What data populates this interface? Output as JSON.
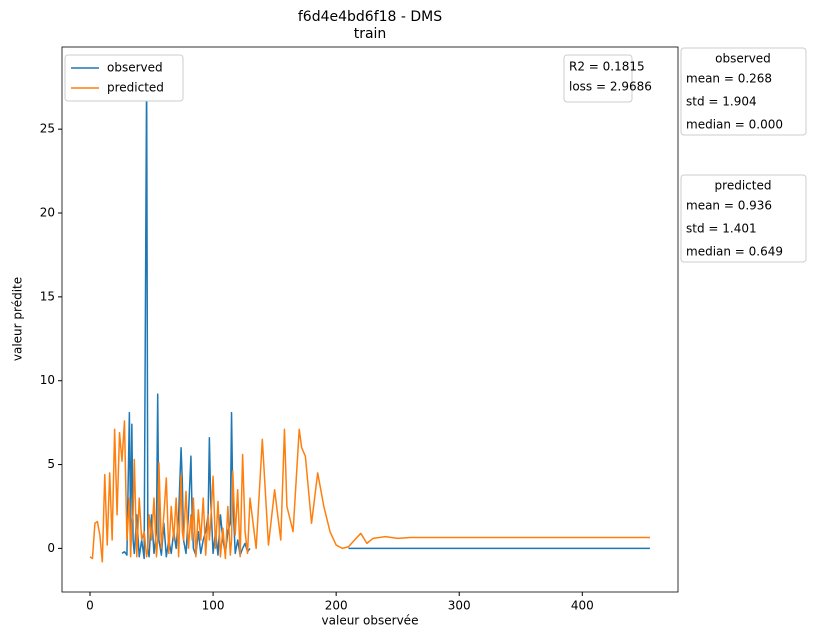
{
  "chart_data": {
    "type": "line",
    "title": "f6d4e4bd6f18 - DMS",
    "subtitle": "train",
    "xlabel": "valeur observée",
    "ylabel": "valeur prédite",
    "xlim": [
      -22.75,
      477.75
    ],
    "xticks": [
      0,
      100,
      200,
      300,
      400
    ],
    "ylim": [
      -2.6,
      29.9
    ],
    "yticks": [
      0,
      5,
      10,
      15,
      20,
      25
    ],
    "legend": "upper left",
    "x": [
      0,
      2,
      4,
      6,
      8,
      10,
      12,
      14,
      16,
      18,
      20,
      22,
      24,
      26,
      28,
      30,
      32,
      33,
      34,
      35,
      36,
      38,
      40,
      42,
      44,
      46,
      47,
      48,
      50,
      52,
      54,
      55,
      56,
      58,
      60,
      62,
      64,
      66,
      68,
      70,
      72,
      74,
      75,
      76,
      78,
      80,
      82,
      83,
      84,
      86,
      88,
      90,
      92,
      94,
      96,
      97,
      98,
      100,
      102,
      104,
      106,
      108,
      110,
      112,
      114,
      115,
      116,
      118,
      120,
      122,
      124,
      126,
      128,
      130,
      135,
      140,
      145,
      150,
      155,
      158,
      160,
      165,
      170,
      172,
      175,
      180,
      185,
      190,
      195,
      200,
      205,
      210,
      215,
      220,
      225,
      230,
      240,
      250,
      260,
      280,
      300,
      350,
      400,
      455
    ],
    "series": [
      {
        "name": "observed",
        "color": "#1f77b4",
        "values": [
          null,
          null,
          null,
          null,
          null,
          null,
          null,
          null,
          null,
          null,
          null,
          null,
          null,
          -0.3,
          -0.2,
          -0.4,
          8.1,
          1,
          7.4,
          0.5,
          -0.3,
          2,
          -0.5,
          0.5,
          -0.6,
          28.3,
          0,
          -0.5,
          2,
          -0.3,
          1,
          9.2,
          0.5,
          -0.4,
          1.5,
          -0.5,
          0.5,
          -0.3,
          1,
          0,
          2,
          6,
          4,
          0.5,
          -0.3,
          2,
          5.5,
          2,
          0,
          -0.4,
          1,
          -0.3,
          0.5,
          1,
          2,
          6.6,
          3,
          -0.3,
          1,
          -0.4,
          2,
          0.5,
          -0.3,
          1,
          1.5,
          8.1,
          3,
          -0.3,
          0.5,
          -0.4,
          0,
          0.3,
          -0.2,
          0,
          null,
          null,
          null,
          null,
          null,
          null,
          null,
          null,
          null,
          null,
          null,
          null,
          null,
          null,
          null,
          null,
          null,
          0,
          0,
          0,
          0,
          0,
          0,
          0,
          0,
          0,
          0,
          0,
          0,
          0
        ]
      },
      {
        "name": "predicted",
        "color": "#ff7f0e",
        "values": [
          -0.5,
          -0.6,
          1.5,
          1.6,
          0.8,
          -0.8,
          4.4,
          0.2,
          4.5,
          0.5,
          7.1,
          2,
          6.9,
          5.2,
          7.6,
          0.5,
          3,
          -0.5,
          1.5,
          2,
          5.3,
          -0.5,
          3,
          0.5,
          1,
          -0.5,
          0,
          2,
          0.5,
          3,
          -0.5,
          0.5,
          5.1,
          0,
          2,
          4.2,
          -0.3,
          2.5,
          0.5,
          3,
          -0.5,
          4.4,
          1,
          0.5,
          3.4,
          0,
          2,
          0.5,
          3,
          -0.5,
          2.3,
          0.5,
          3,
          -0.4,
          2,
          0.5,
          1.5,
          4.3,
          0,
          2.8,
          -0.5,
          1.2,
          -0.6,
          2.5,
          -0.4,
          0.5,
          4.6,
          0.8,
          3.5,
          -0.5,
          5.6,
          1,
          -0.3,
          3,
          0,
          6.5,
          0.2,
          3.5,
          0.5,
          7.1,
          2.5,
          1,
          7.1,
          6,
          5.5,
          1.5,
          4.5,
          2.5,
          1,
          0.2,
          0,
          0.1,
          0.5,
          0.9,
          0.3,
          0.6,
          0.7,
          0.6,
          0.65,
          0.65,
          0.65,
          0.65,
          0.65,
          0.65
        ]
      }
    ],
    "metrics": [
      "R2 = 0.1815",
      "loss = 2.9686"
    ],
    "stats_boxes": [
      {
        "title": "observed",
        "lines": [
          "mean = 0.268",
          "std = 1.904",
          "median = 0.000"
        ]
      },
      {
        "title": "predicted",
        "lines": [
          "mean = 0.936",
          "std = 1.401",
          "median = 0.649"
        ]
      }
    ]
  }
}
